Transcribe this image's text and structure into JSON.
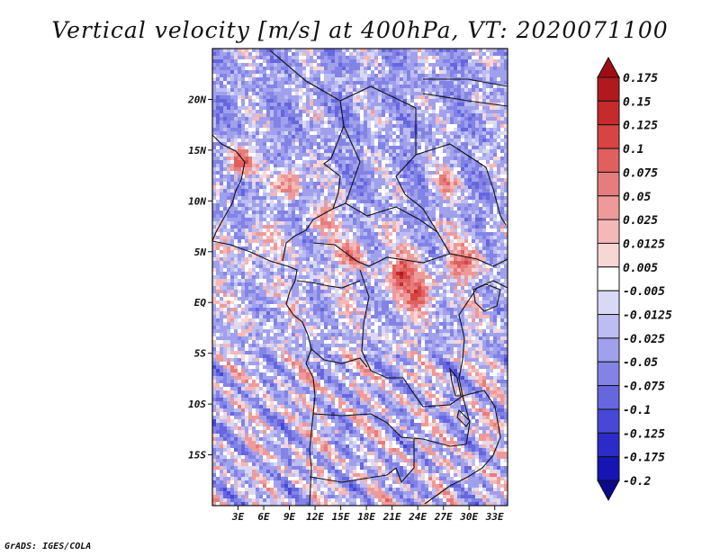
{
  "chart_data": {
    "type": "heatmap",
    "title": "Vertical velocity [m/s] at 400hPa, VT: 2020071100",
    "variable": "Vertical velocity",
    "units": "m/s",
    "level": "400hPa",
    "valid_time": "2020071100",
    "xlabel": "",
    "ylabel": "",
    "lon_range": [
      0,
      34.5
    ],
    "lat_range": [
      -20,
      25
    ],
    "x_ticks": [
      {
        "value": 3,
        "label": "3E"
      },
      {
        "value": 6,
        "label": "6E"
      },
      {
        "value": 9,
        "label": "9E"
      },
      {
        "value": 12,
        "label": "12E"
      },
      {
        "value": 15,
        "label": "15E"
      },
      {
        "value": 18,
        "label": "18E"
      },
      {
        "value": 21,
        "label": "21E"
      },
      {
        "value": 24,
        "label": "24E"
      },
      {
        "value": 27,
        "label": "27E"
      },
      {
        "value": 30,
        "label": "30E"
      },
      {
        "value": 33,
        "label": "33E"
      }
    ],
    "y_ticks": [
      {
        "value": 20,
        "label": "20N"
      },
      {
        "value": 15,
        "label": "15N"
      },
      {
        "value": 10,
        "label": "10N"
      },
      {
        "value": 5,
        "label": "5N"
      },
      {
        "value": 0,
        "label": "EQ"
      },
      {
        "value": -5,
        "label": "5S"
      },
      {
        "value": -10,
        "label": "10S"
      },
      {
        "value": -15,
        "label": "15S"
      }
    ],
    "colorbar": {
      "placement": "right",
      "labels": [
        "0.175",
        "0.15",
        "0.125",
        "0.1",
        "0.075",
        "0.05",
        "0.025",
        "0.0125",
        "0.005",
        "-0.005",
        "-0.0125",
        "-0.025",
        "-0.05",
        "-0.075",
        "-0.1",
        "-0.125",
        "-0.175",
        "-0.2"
      ],
      "colors": [
        "#9e0d14",
        "#b01a1f",
        "#c52a2c",
        "#d64444",
        "#e06060",
        "#e77c7c",
        "#ee9a9a",
        "#f4b8b8",
        "#f9d6d6",
        "#ffffff",
        "#d9d9f7",
        "#bdbdf2",
        "#a0a0ec",
        "#8383e6",
        "#6666df",
        "#4848d6",
        "#2b2bc9",
        "#1515b3",
        "#0a0a8c"
      ]
    },
    "credit": "GrADS: IGES/COLA"
  }
}
